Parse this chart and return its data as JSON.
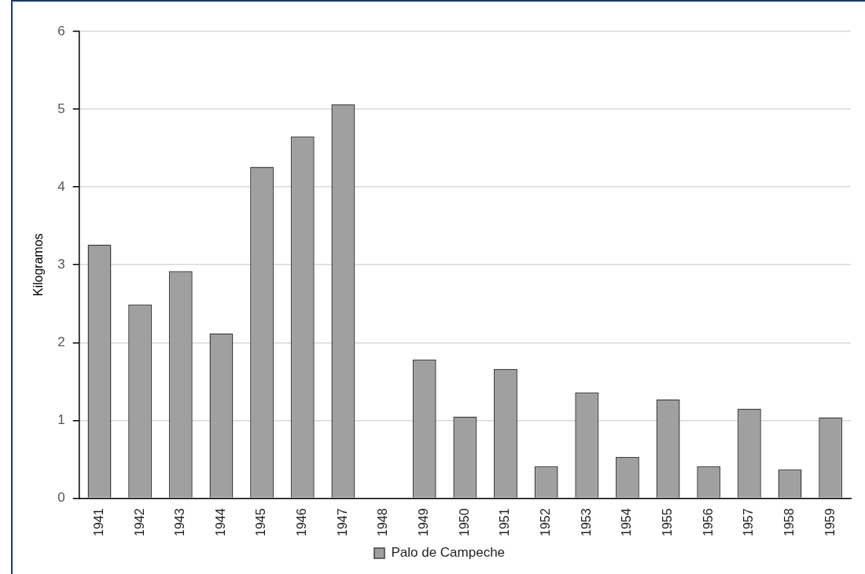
{
  "chart_data": {
    "type": "bar",
    "ylabel": "Kilogramos",
    "categories": [
      "1941",
      "1942",
      "1943",
      "1944",
      "1945",
      "1946",
      "1947",
      "1948",
      "1949",
      "1950",
      "1951",
      "1952",
      "1953",
      "1954",
      "1955",
      "1956",
      "1957",
      "1958",
      "1959"
    ],
    "series": [
      {
        "name": "Palo de Campeche",
        "color": "#a0a0a0",
        "values": [
          3.26,
          2.49,
          2.92,
          2.12,
          4.26,
          4.65,
          5.06,
          null,
          1.78,
          1.05,
          1.66,
          0.41,
          1.36,
          0.53,
          1.27,
          0.41,
          1.15,
          0.37,
          1.04
        ]
      }
    ],
    "ylim": [
      0,
      6
    ],
    "yticks": [
      0,
      1,
      2,
      3,
      4,
      5,
      6
    ],
    "grid": "y",
    "legend": "bottom"
  }
}
